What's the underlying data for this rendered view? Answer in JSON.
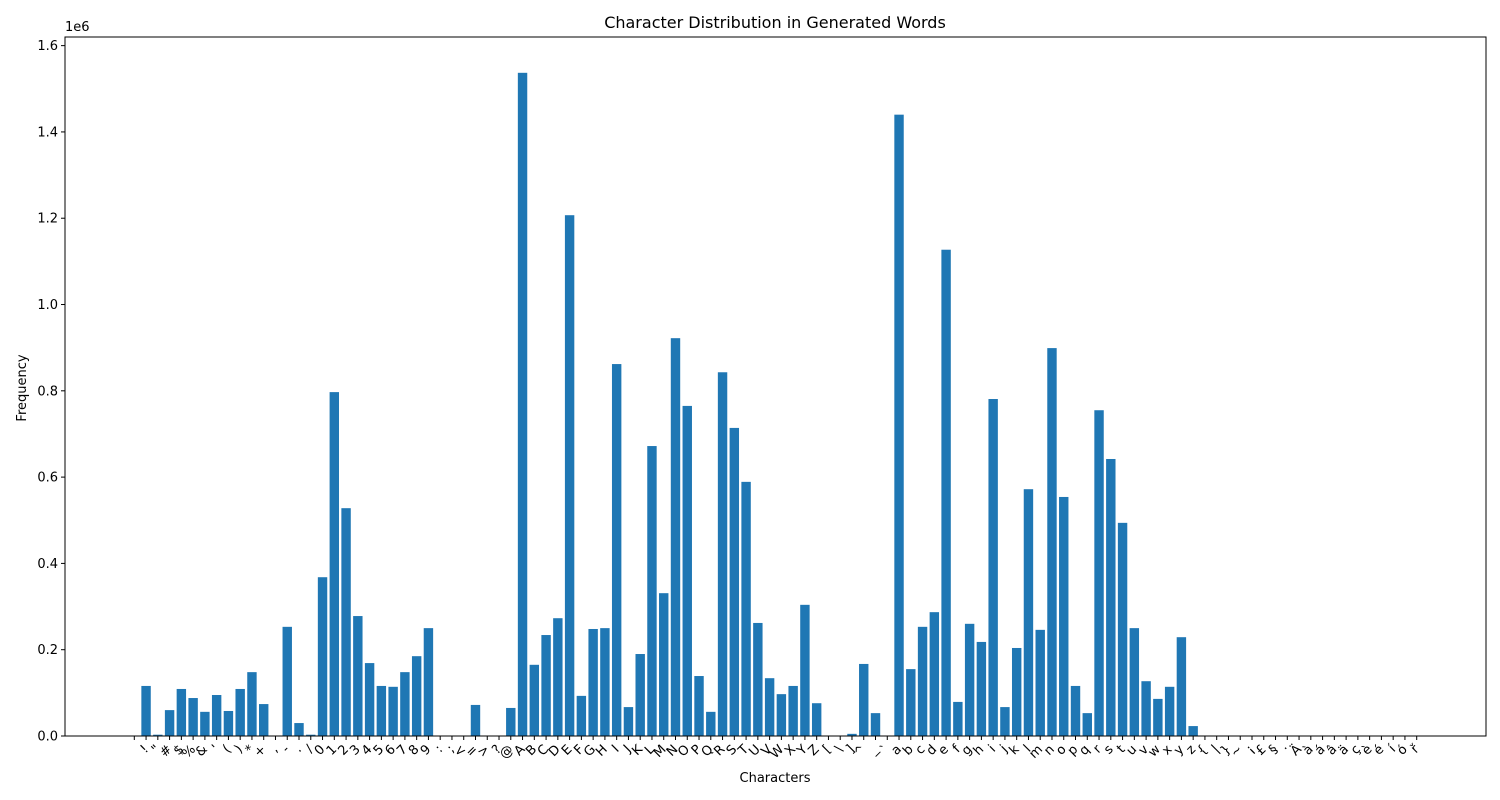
{
  "chart_data": {
    "type": "bar",
    "title": "Character Distribution in Generated Words",
    "x_label": "Characters",
    "y_label": "Frequency",
    "y_offset_label": "1e6",
    "color": "#1f77b4",
    "categories": [
      " ",
      "!",
      "\"",
      "#",
      "$",
      "%",
      "&",
      "'",
      "(",
      ")",
      "*",
      "+",
      ",",
      "-",
      ".",
      "/",
      "0",
      "1",
      "2",
      "3",
      "4",
      "5",
      "6",
      "7",
      "8",
      "9",
      ":",
      ";",
      "<",
      "=",
      ">",
      "?",
      "@",
      "A",
      "B",
      "C",
      "D",
      "E",
      "F",
      "G",
      "H",
      "I",
      "J",
      "K",
      "L",
      "M",
      "N",
      "O",
      "P",
      "Q",
      "R",
      "S",
      "T",
      "U",
      "V",
      "W",
      "X",
      "Y",
      "Z",
      "[",
      "\\",
      "]",
      "^",
      "_",
      "`",
      "a",
      "b",
      "c",
      "d",
      "e",
      "f",
      "g",
      "h",
      "i",
      "j",
      "k",
      "l",
      "m",
      "n",
      "o",
      "p",
      "q",
      "r",
      "s",
      "t",
      "u",
      "v",
      "w",
      "x",
      "y",
      "z",
      "{",
      "|",
      "}",
      "~",
      "¡",
      "£",
      "§",
      "·",
      "Ä",
      "à",
      "á",
      "â",
      "ä",
      "ç",
      "è",
      "é",
      "í",
      "ó",
      "ř"
    ],
    "values": [
      0,
      116000,
      3000,
      60000,
      109000,
      88000,
      56000,
      95000,
      58000,
      109000,
      148000,
      74000,
      0,
      253000,
      30000,
      3000,
      368000,
      797000,
      528000,
      278000,
      169000,
      116000,
      114000,
      148000,
      185000,
      250000,
      0,
      0,
      0,
      72000,
      0,
      0,
      65000,
      1537000,
      165000,
      234000,
      273000,
      1207000,
      93000,
      248000,
      250000,
      862000,
      67000,
      190000,
      672000,
      331000,
      922000,
      765000,
      139000,
      56000,
      843000,
      714000,
      589000,
      262000,
      134000,
      97000,
      116000,
      304000,
      76000,
      0,
      0,
      5000,
      167000,
      53000,
      0,
      1440000,
      155000,
      253000,
      287000,
      1127000,
      79000,
      260000,
      218000,
      781000,
      67000,
      204000,
      572000,
      246000,
      899000,
      554000,
      116000,
      53000,
      755000,
      642000,
      494000,
      250000,
      127000,
      86000,
      114000,
      229000,
      23000,
      0,
      0,
      0,
      0,
      0,
      0,
      0,
      0,
      0,
      0,
      0,
      0,
      0,
      0,
      0,
      0,
      0,
      0,
      0
    ],
    "ylim": [
      0,
      1620000
    ],
    "yticks": [
      {
        "value": 0,
        "label": "0.0"
      },
      {
        "value": 200000,
        "label": "0.2"
      },
      {
        "value": 400000,
        "label": "0.4"
      },
      {
        "value": 600000,
        "label": "0.6"
      },
      {
        "value": 800000,
        "label": "0.8"
      },
      {
        "value": 1000000,
        "label": "1.0"
      },
      {
        "value": 1200000,
        "label": "1.2"
      },
      {
        "value": 1400000,
        "label": "1.4"
      },
      {
        "value": 1600000,
        "label": "1.6"
      }
    ]
  }
}
